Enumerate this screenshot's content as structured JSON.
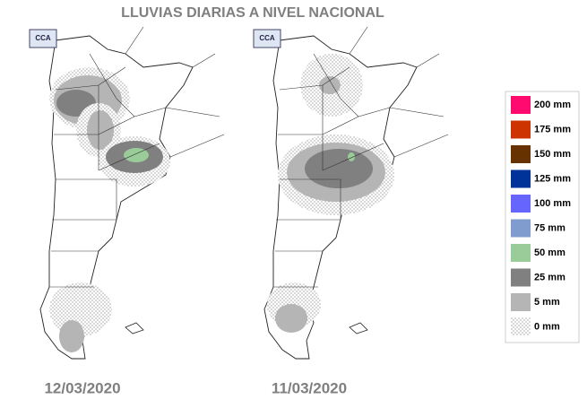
{
  "header": {
    "title": "LLUVIAS DIARIAS A NIVEL NACIONAL"
  },
  "maps": [
    {
      "logo": "CCA",
      "date": "12/03/2020"
    },
    {
      "logo": "CCA",
      "date": "11/03/2020"
    }
  ],
  "legend": [
    {
      "label": "200 mm",
      "color": "#ff0a6e"
    },
    {
      "label": "175 mm",
      "color": "#cc3300"
    },
    {
      "label": "150 mm",
      "color": "#663300"
    },
    {
      "label": "125 mm",
      "color": "#003399"
    },
    {
      "label": "100 mm",
      "color": "#6666ff"
    },
    {
      "label": "75 mm",
      "color": "#809ccf"
    },
    {
      "label": "50 mm",
      "color": "#99cc99"
    },
    {
      "label": "25 mm",
      "color": "#808080"
    },
    {
      "label": "5 mm",
      "color": "#b5b5b5"
    },
    {
      "label": "0 mm",
      "pattern": "dots"
    }
  ]
}
